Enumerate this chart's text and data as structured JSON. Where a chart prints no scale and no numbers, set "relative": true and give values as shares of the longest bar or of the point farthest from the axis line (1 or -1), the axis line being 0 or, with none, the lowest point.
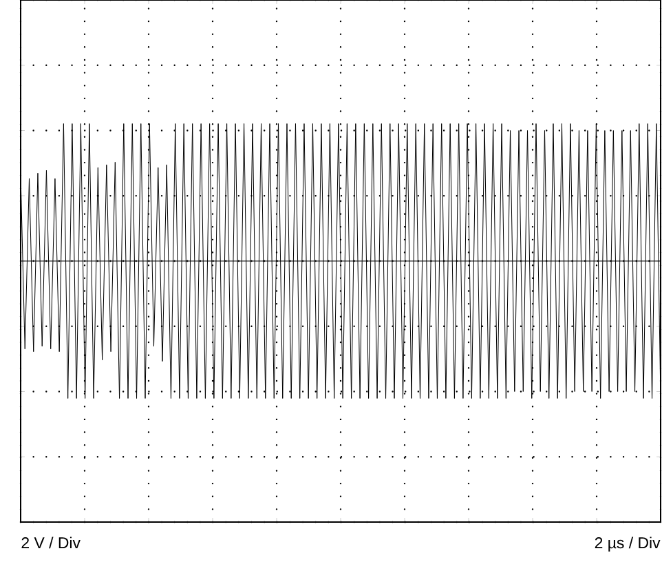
{
  "chart_data": {
    "type": "line",
    "relative": true,
    "grid": true,
    "marker": "none",
    "line_style": "solid",
    "annotations": [
      "2 V / Div",
      "2 µs / Div"
    ],
    "categories": [
      null,
      null,
      null,
      null,
      null,
      null,
      null,
      null,
      null,
      null,
      null,
      null,
      null,
      null,
      null,
      null,
      null,
      null,
      null,
      null,
      null,
      null,
      null,
      null,
      null,
      null,
      null,
      null,
      null,
      null,
      null,
      null,
      null,
      null,
      null,
      null,
      null,
      null,
      null,
      null,
      null,
      null,
      null,
      null,
      null,
      null,
      null,
      null,
      null,
      null,
      null,
      null,
      null,
      null,
      null,
      null,
      null,
      null,
      null,
      null,
      null,
      null,
      null,
      null,
      null,
      null,
      null,
      null,
      null,
      null,
      null,
      null,
      null,
      null,
      null,
      null,
      null,
      null,
      null,
      null,
      null,
      null,
      null,
      null,
      null,
      null,
      null,
      null,
      null,
      null,
      null,
      null,
      null,
      null,
      null,
      null,
      null,
      null,
      null,
      null,
      null,
      null,
      null,
      null,
      null,
      null,
      null,
      null,
      null,
      null,
      null,
      null,
      null,
      null,
      null,
      null,
      null,
      null,
      null,
      null,
      null,
      null,
      null,
      null,
      null,
      null,
      null,
      null,
      null,
      null,
      null,
      null,
      null,
      null,
      null,
      null,
      null,
      null,
      null,
      null,
      null,
      null,
      null,
      null,
      null,
      null,
      null,
      null,
      null,
      null
    ],
    "series": [
      {
        "color": "#000000",
        "values": [
          0.62,
          -0.64,
          0.6,
          -0.66,
          0.64,
          -0.62,
          0.66,
          -0.64,
          0.6,
          -0.66,
          1,
          -1,
          1,
          -1,
          1,
          -1,
          1,
          -1,
          0.68,
          -0.72,
          0.7,
          -0.66,
          0.72,
          -1,
          1,
          -1,
          1,
          -1,
          1,
          -1,
          1,
          -0.62,
          0.68,
          -0.73,
          0.7,
          -1,
          1,
          -1,
          1,
          -1,
          1,
          -1,
          1,
          -1,
          1,
          -1,
          1,
          -1,
          1,
          -1,
          1,
          -1,
          1,
          -1,
          1,
          -1,
          1,
          -1,
          1,
          -1,
          1,
          -1,
          1,
          -1,
          1,
          -1,
          1,
          -1,
          1,
          -1,
          1,
          -1,
          1,
          -1,
          1,
          -1,
          1,
          -1,
          1,
          -1,
          1,
          -1,
          1,
          -1,
          1,
          -1,
          1,
          -1,
          1,
          -1,
          1,
          -1,
          1,
          -1,
          1,
          -1,
          1,
          -1,
          1,
          -1,
          1,
          -1,
          1,
          -1,
          1,
          -1,
          1,
          -1,
          1,
          -1,
          1,
          -1,
          1,
          -1,
          0.95,
          -0.95,
          0.95,
          -0.95,
          0.95,
          -1,
          1,
          -0.95,
          0.95,
          -1,
          1,
          -1,
          1,
          -1,
          1,
          -0.95,
          0.95,
          -0.95,
          0.95,
          -0.95,
          1,
          -1,
          0.95,
          -0.95,
          0.95,
          -0.95,
          0.95,
          -0.95,
          0.95,
          -0.95,
          1,
          -1,
          1,
          -1,
          1,
          -1
        ]
      }
    ]
  }
}
